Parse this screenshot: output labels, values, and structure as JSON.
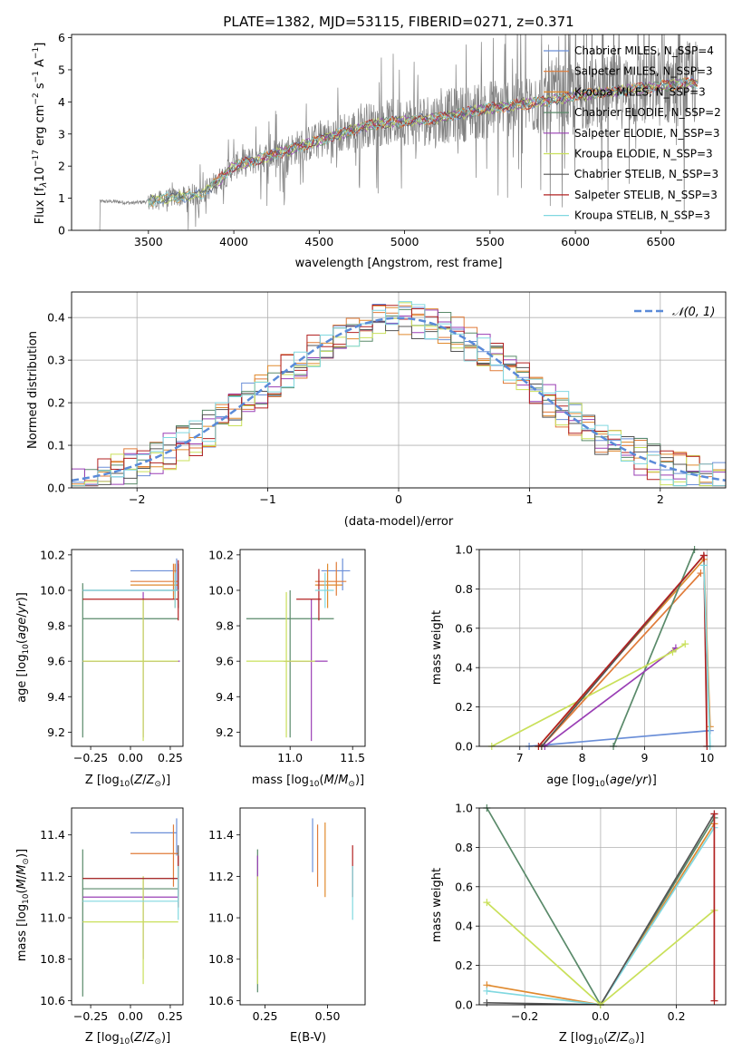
{
  "figure": {
    "title": "PLATE=1382, MJD=53115, FIBERID=0271, z=0.371",
    "series_names": [
      "Chabrier MILES, N_SSP=4",
      "Salpeter MILES, N_SSP=3",
      "Kroupa MILES, N_SSP=3",
      "Chabrier ELODIE, N_SSP=2",
      "Salpeter ELODIE, N_SSP=3",
      "Kroupa ELODIE, N_SSP=3",
      "Chabrier STELIB, N_SSP=3",
      "Salpeter STELIB, N_SSP=3",
      "Kroupa STELIB, N_SSP=3"
    ],
    "series_colors": [
      "#6b8fd8",
      "#e07b39",
      "#e08a2e",
      "#5a8a6a",
      "#9a3fb5",
      "#c9e05a",
      "#555555",
      "#b22222",
      "#80d8e0"
    ]
  },
  "chart_data": [
    {
      "type": "line",
      "title": "PLATE=1382, MJD=53115, FIBERID=0271, z=0.371",
      "xlabel": "wavelength [Angstrom, rest frame]",
      "ylabel": "Flux [f_λ 10^-17 erg cm^-2 s^-1 A^-1]",
      "xlim": [
        3050,
        6880
      ],
      "ylim": [
        0,
        6.1
      ],
      "xticks": [
        "3500",
        "4000",
        "4500",
        "5000",
        "5500",
        "6000",
        "6500"
      ],
      "yticks": [
        "0",
        "1",
        "2",
        "3",
        "4",
        "5",
        "6"
      ],
      "legend": [
        "Chabrier MILES, N_SSP=4",
        "Salpeter MILES, N_SSP=3",
        "Kroupa MILES, N_SSP=3",
        "Chabrier ELODIE, N_SSP=2",
        "Salpeter ELODIE, N_SSP=3",
        "Kroupa ELODIE, N_SSP=3",
        "Chabrier STELIB, N_SSP=3",
        "Salpeter STELIB, N_SSP=3",
        "Kroupa STELIB, N_SSP=3"
      ],
      "legend_position": "top-right",
      "model_trend": {
        "x": [
          3200,
          3300,
          3400,
          3500,
          3600,
          3700,
          3800,
          3900,
          4000,
          4200,
          4500,
          4800,
          5000,
          5200,
          5500,
          5800,
          6000,
          6200,
          6500,
          6700
        ],
        "y": [
          0.9,
          0.9,
          0.85,
          0.9,
          1.0,
          1.05,
          1.1,
          1.5,
          2.0,
          2.3,
          2.8,
          3.3,
          3.4,
          3.5,
          3.8,
          4.0,
          4.2,
          4.3,
          4.5,
          4.6
        ]
      }
    },
    {
      "type": "line",
      "xlabel": "(data-model)/error",
      "ylabel": "Normed distribution",
      "xlim": [
        -2.5,
        2.5
      ],
      "ylim": [
        0,
        0.46
      ],
      "xticks": [
        "−2",
        "−1",
        "0",
        "1",
        "2"
      ],
      "yticks": [
        "0.0",
        "0.1",
        "0.2",
        "0.3",
        "0.4"
      ],
      "legend": [
        "𝒩(0, 1)"
      ],
      "legend_position": "top-right"
    },
    {
      "type": "scatter",
      "xlabel": "Z [log10(Z/Z⊙)]",
      "ylabel": "age [log10(age/yr)]",
      "xlim": [
        -0.37,
        0.33
      ],
      "ylim": [
        9.12,
        10.23
      ],
      "xticks": [
        "−0.25",
        "0.00",
        "0.25"
      ],
      "yticks": [
        "9.2",
        "9.4",
        "9.6",
        "9.8",
        "10.0",
        "10.2"
      ]
    },
    {
      "type": "scatter",
      "xlabel": "mass [log10(M/M⊙)]",
      "xlim": [
        10.6,
        11.6
      ],
      "ylim": [
        9.12,
        10.23
      ],
      "xticks": [
        "11.0",
        "11.5"
      ],
      "yticks": [
        "9.2",
        "9.4",
        "9.6",
        "9.8",
        "10.0",
        "10.2"
      ]
    },
    {
      "type": "line",
      "xlabel": "age [log10(age/yr)]",
      "ylabel": "mass weight",
      "xlim": [
        6.35,
        10.3
      ],
      "ylim": [
        0,
        1.0
      ],
      "xticks": [
        "7",
        "8",
        "9",
        "10"
      ],
      "yticks": [
        "0.0",
        "0.2",
        "0.4",
        "0.6",
        "0.8",
        "1.0"
      ],
      "series": [
        {
          "x": [
            7.15,
            10.05
          ],
          "y": [
            0,
            0.08
          ]
        },
        {
          "x": [
            7.3,
            9.95,
            10.05
          ],
          "y": [
            0,
            0.95,
            0.1
          ]
        },
        {
          "x": [
            7.35,
            9.9
          ],
          "y": [
            0,
            0.88
          ]
        },
        {
          "x": [
            8.5,
            9.8
          ],
          "y": [
            0,
            1.0
          ]
        },
        {
          "x": [
            7.4,
            9.5
          ],
          "y": [
            0,
            0.5
          ]
        },
        {
          "x": [
            6.55,
            9.45,
            9.65
          ],
          "y": [
            0,
            0.48,
            0.52
          ]
        },
        {
          "x": [
            7.35,
            9.95
          ],
          "y": [
            0,
            0.97
          ]
        },
        {
          "x": [
            7.3,
            9.95,
            10.0
          ],
          "y": [
            0,
            0.97,
            0
          ]
        },
        {
          "x": [
            9.95,
            10.05
          ],
          "y": [
            0.92,
            0
          ]
        },
        {
          "x": [
            7.4,
            9.95,
            10.15
          ],
          "y": [
            0,
            0.5,
            0.49
          ]
        }
      ]
    },
    {
      "type": "scatter",
      "xlabel": "Z [log10(Z/Z⊙)]",
      "ylabel": "mass [log10(M/M⊙)]",
      "xlim": [
        -0.37,
        0.33
      ],
      "ylim": [
        10.58,
        11.53
      ],
      "xticks": [
        "−0.25",
        "0.00",
        "0.25"
      ],
      "yticks": [
        "10.6",
        "10.8",
        "11.0",
        "11.2",
        "11.4"
      ]
    },
    {
      "type": "scatter",
      "xlabel": "E(B-V)",
      "xlim": [
        0.15,
        0.65
      ],
      "ylim": [
        10.58,
        11.53
      ],
      "xticks": [
        "0.25",
        "0.50"
      ],
      "yticks": [
        "10.6",
        "10.8",
        "11.0",
        "11.2",
        "11.4"
      ]
    },
    {
      "type": "line",
      "xlabel": "Z [log10(Z/Z⊙)]",
      "ylabel": "mass weight",
      "xlim": [
        -0.32,
        0.33
      ],
      "ylim": [
        0,
        1.0
      ],
      "xticks": [
        "−0.2",
        "0.0",
        "0.2"
      ],
      "yticks": [
        "0.0",
        "0.2",
        "0.4",
        "0.6",
        "0.8",
        "1.0"
      ],
      "series": [
        {
          "x": [
            -0.3,
            0.0,
            0.3
          ],
          "y": [
            1.0,
            0.0,
            0.95
          ]
        },
        {
          "x": [
            -0.3,
            0.0,
            0.3
          ],
          "y": [
            0.1,
            0.0,
            0.92
          ]
        },
        {
          "x": [
            -0.3,
            0.0,
            0.3
          ],
          "y": [
            0.07,
            0.0,
            0.9
          ]
        },
        {
          "x": [
            -0.3,
            0.0,
            0.3
          ],
          "y": [
            0.01,
            0.0,
            0.97
          ]
        },
        {
          "x": [
            -0.3,
            0.0,
            0.3
          ],
          "y": [
            0.52,
            0.0,
            0.48
          ]
        },
        {
          "x": [
            0.0,
            0.0,
            0.3
          ],
          "y": [
            0.0,
            0.49,
            0.51
          ]
        },
        {
          "x": [
            0.3,
            0.3
          ],
          "y": [
            0.97,
            0.02
          ]
        }
      ]
    }
  ]
}
